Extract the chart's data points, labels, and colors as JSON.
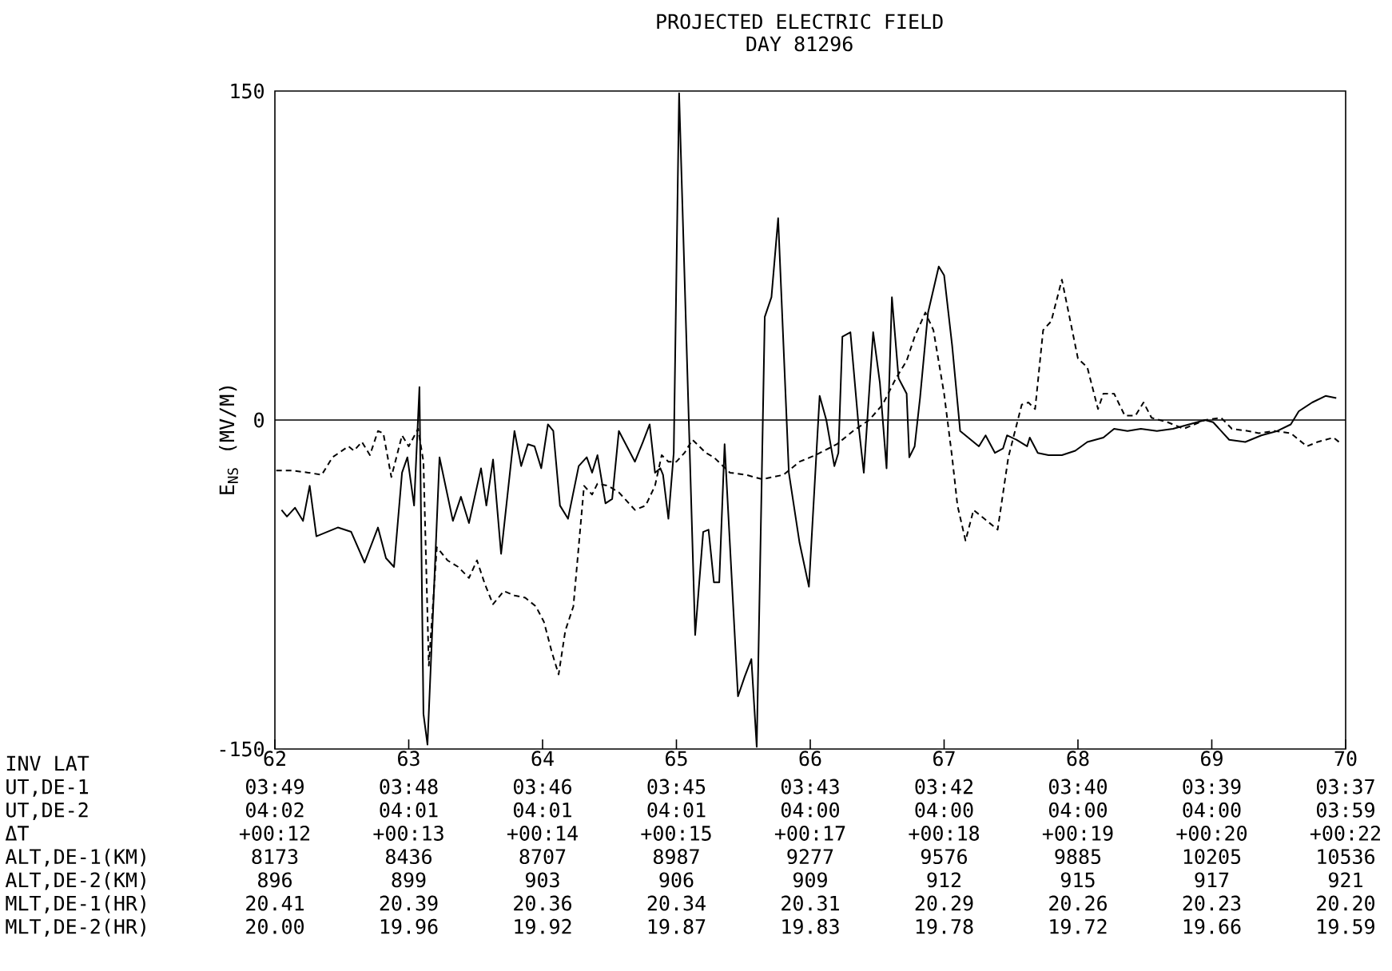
{
  "chart_data": {
    "type": "line",
    "title": "PROJECTED ELECTRIC FIELD",
    "subtitle": "DAY 81296",
    "ylabel": "E$_{NS}$ (MV/M)",
    "xlim": [
      62,
      70
    ],
    "xticks": [
      62,
      63,
      64,
      65,
      66,
      67,
      68,
      69,
      70
    ],
    "ylim": [
      -150,
      150
    ],
    "yticks": [
      -150,
      0,
      150
    ],
    "ref_lines": [
      {
        "axis": "y",
        "value": 0,
        "color": "#000000"
      }
    ],
    "series": [
      {
        "color": "#000000",
        "line_style": "solid",
        "x": [
          62.05,
          62.09,
          62.15,
          62.21,
          62.26,
          62.31,
          62.47,
          62.57,
          62.67,
          62.77,
          62.83,
          62.89,
          62.95,
          62.99,
          63.04,
          63.08,
          63.11,
          63.14,
          63.23,
          63.33,
          63.39,
          63.45,
          63.54,
          63.58,
          63.63,
          63.69,
          63.79,
          63.84,
          63.89,
          63.94,
          63.99,
          64.04,
          64.08,
          64.13,
          64.19,
          64.27,
          64.33,
          64.37,
          64.41,
          64.47,
          64.52,
          64.57,
          64.63,
          64.69,
          64.75,
          64.8,
          64.84,
          64.88,
          64.9,
          64.94,
          64.98,
          65.02,
          65.14,
          65.2,
          65.24,
          65.28,
          65.32,
          65.36,
          65.46,
          65.51,
          65.56,
          65.6,
          65.66,
          65.71,
          65.76,
          65.84,
          65.92,
          65.99,
          66.07,
          66.12,
          66.18,
          66.21,
          66.24,
          66.3,
          66.36,
          66.4,
          66.47,
          66.52,
          66.57,
          66.61,
          66.66,
          66.72,
          66.74,
          66.78,
          66.82,
          66.88,
          66.96,
          67.0,
          67.06,
          67.12,
          67.18,
          67.26,
          67.31,
          67.38,
          67.44,
          67.47,
          67.54,
          67.62,
          67.64,
          67.7,
          67.78,
          67.88,
          67.98,
          68.07,
          68.19,
          68.27,
          68.37,
          68.47,
          68.59,
          68.71,
          68.83,
          68.95,
          69.01,
          69.13,
          69.25,
          69.37,
          69.49,
          69.59,
          69.65,
          69.75,
          69.85,
          69.93
        ],
        "values": [
          -41,
          -44,
          -40,
          -46,
          -30,
          -53,
          -49,
          -51,
          -65,
          -49,
          -63,
          -67,
          -24,
          -17,
          -39,
          15,
          -134,
          -148,
          -17,
          -46,
          -35,
          -47,
          -22,
          -39,
          -18,
          -61,
          -5,
          -21,
          -11,
          -12,
          -22,
          -2,
          -5,
          -39,
          -45,
          -21,
          -17,
          -24,
          -16,
          -38,
          -36,
          -5,
          -12,
          -19,
          -10,
          -2,
          -24,
          -22,
          -25,
          -45,
          -15,
          149,
          -98,
          -51,
          -50,
          -74,
          -74,
          -11,
          -126,
          -117,
          -109,
          -149,
          47,
          56,
          92,
          -24,
          -56,
          -76,
          11,
          0,
          -21,
          -15,
          38,
          40,
          -2,
          -24,
          40,
          17,
          -22,
          56,
          19,
          12,
          -17,
          -12,
          10,
          49,
          70,
          66,
          34,
          -5,
          -8,
          -12,
          -7,
          -15,
          -13,
          -7,
          -9,
          -12,
          -8,
          -15,
          -16,
          -16,
          -14,
          -10,
          -8,
          -4,
          -5,
          -4,
          -5,
          -4,
          -2,
          0,
          -1,
          -9,
          -10,
          -7,
          -5,
          -2,
          4,
          8,
          11,
          10
        ]
      },
      {
        "color": "#000000",
        "line_style": "dashed",
        "x": [
          62.01,
          62.13,
          62.25,
          62.35,
          62.43,
          62.55,
          62.59,
          62.65,
          62.71,
          62.77,
          62.81,
          62.87,
          62.95,
          63.0,
          63.07,
          63.11,
          63.15,
          63.21,
          63.29,
          63.37,
          63.45,
          63.51,
          63.57,
          63.63,
          63.71,
          63.79,
          63.87,
          63.95,
          64.01,
          64.07,
          64.12,
          64.17,
          64.23,
          64.31,
          64.37,
          64.41,
          64.49,
          64.57,
          64.69,
          64.77,
          64.84,
          64.89,
          64.94,
          65.0,
          65.06,
          65.12,
          65.22,
          65.28,
          65.4,
          65.52,
          65.64,
          65.8,
          65.92,
          66.04,
          66.2,
          66.32,
          66.44,
          66.54,
          66.64,
          66.72,
          66.78,
          66.86,
          66.92,
          67.0,
          67.06,
          67.1,
          67.16,
          67.22,
          67.3,
          67.4,
          67.48,
          67.58,
          67.63,
          67.68,
          67.74,
          67.8,
          67.88,
          67.94,
          68.0,
          68.07,
          68.15,
          68.19,
          68.27,
          68.35,
          68.43,
          68.49,
          68.55,
          68.67,
          68.79,
          68.95,
          69.07,
          69.15,
          69.27,
          69.35,
          69.47,
          69.59,
          69.71,
          69.79,
          69.91,
          69.97
        ],
        "values": [
          -23,
          -23,
          -24,
          -25,
          -17,
          -12,
          -14,
          -10,
          -16,
          -5,
          -6,
          -26,
          -7,
          -12,
          -4,
          -19,
          -112,
          -58,
          -64,
          -67,
          -72,
          -64,
          -75,
          -84,
          -78,
          -80,
          -81,
          -85,
          -92,
          -106,
          -116,
          -96,
          -85,
          -30,
          -34,
          -29,
          -30,
          -33,
          -41,
          -39,
          -30,
          -16,
          -19,
          -19,
          -15,
          -9,
          -15,
          -17,
          -24,
          -25,
          -27,
          -25,
          -19,
          -16,
          -11,
          -5,
          0,
          7,
          19,
          27,
          38,
          49,
          41,
          12,
          -17,
          -39,
          -55,
          -41,
          -45,
          -50,
          -17,
          7,
          8,
          5,
          41,
          45,
          64,
          46,
          28,
          24,
          5,
          12,
          12,
          2,
          2,
          8,
          1,
          -1,
          -4,
          0,
          1,
          -4,
          -5,
          -6,
          -5,
          -6,
          -12,
          -10,
          -8,
          -11
        ]
      }
    ],
    "annotations": [
      "INV LAT",
      "UT,DE-1",
      "03:49",
      "03:48",
      "03:46",
      "03:45",
      "03:43",
      "03:42",
      "03:40",
      "03:39",
      "03:37",
      "UT,DE-2",
      "04:02",
      "04:01",
      "04:01",
      "04:01",
      "04:00",
      "04:00",
      "04:00",
      "04:00",
      "03:59",
      "ΔT",
      "+00:12",
      "+00:13",
      "+00:14",
      "+00:15",
      "+00:17",
      "+00:18",
      "+00:19",
      "+00:20",
      "+00:22",
      "ALT,DE-1(KM)",
      "8173",
      "8436",
      "8707",
      "8987",
      "9277",
      "9576",
      "9885",
      "10205",
      "10536",
      "ALT,DE-2(KM)",
      "896",
      "899",
      "903",
      "906",
      "909",
      "912",
      "915",
      "917",
      "921",
      "MLT,DE-1(HR)",
      "20.41",
      "20.39",
      "20.36",
      "20.34",
      "20.31",
      "20.29",
      "20.26",
      "20.23",
      "20.20",
      "MLT,DE-2(HR)",
      "20.00",
      "19.96",
      "19.92",
      "19.87",
      "19.83",
      "19.78",
      "19.72",
      "19.66",
      "19.59"
    ]
  }
}
